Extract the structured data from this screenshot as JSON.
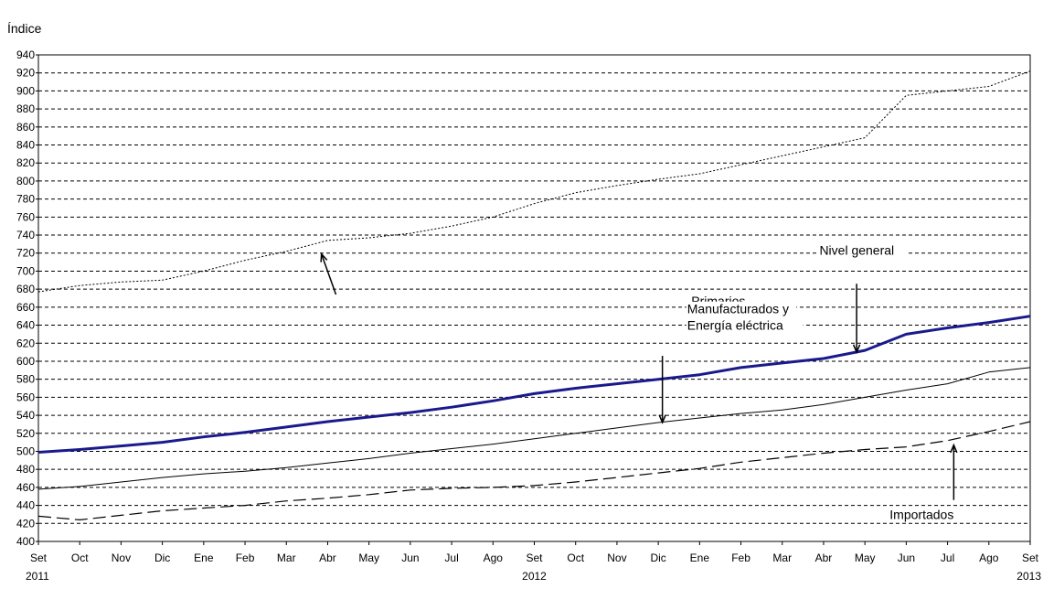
{
  "chart_data": {
    "type": "line",
    "title": "",
    "xlabel": "",
    "ylabel": "Índice",
    "ylim": [
      400,
      940
    ],
    "ytick_step": 20,
    "grid": true,
    "legend": "none",
    "categories": [
      "Set",
      "Oct",
      "Nov",
      "Dic",
      "Ene",
      "Feb",
      "Mar",
      "Abr",
      "May",
      "Jun",
      "Jul",
      "Ago",
      "Set",
      "Oct",
      "Nov",
      "Dic",
      "Ene",
      "Feb",
      "Mar",
      "Abr",
      "May",
      "Jun",
      "Jul",
      "Ago",
      "Set"
    ],
    "year_labels": [
      {
        "index": 0,
        "label": "2011"
      },
      {
        "index": 12,
        "label": "2012"
      },
      {
        "index": 24,
        "label": "2013"
      }
    ],
    "series": [
      {
        "name": "Primarios",
        "color": "#000000",
        "style": "dotted",
        "values": [
          677,
          684,
          688,
          690,
          700,
          712,
          722,
          734,
          737,
          742,
          750,
          760,
          775,
          787,
          795,
          802,
          808,
          818,
          828,
          838,
          848,
          895,
          900,
          905,
          922
        ]
      },
      {
        "name": "Nivel general",
        "color": "#1a1a8c",
        "style": "thick",
        "values": [
          499,
          502,
          506,
          510,
          516,
          521,
          527,
          533,
          538,
          543,
          549,
          556,
          564,
          570,
          575,
          580,
          585,
          593,
          598,
          603,
          612,
          630,
          637,
          643,
          650
        ]
      },
      {
        "name": "Manufacturados y Energía eléctrica",
        "color": "#000000",
        "style": "thin",
        "values": [
          458,
          461,
          466,
          471,
          475,
          478,
          482,
          487,
          492,
          498,
          503,
          508,
          514,
          520,
          526,
          532,
          537,
          542,
          546,
          552,
          560,
          568,
          575,
          588,
          593
        ]
      },
      {
        "name": "Importados",
        "color": "#000000",
        "style": "dashed",
        "values": [
          428,
          424,
          429,
          434,
          437,
          440,
          445,
          448,
          452,
          457,
          459,
          460,
          462,
          466,
          471,
          476,
          481,
          488,
          493,
          498,
          502,
          505,
          512,
          522,
          533
        ]
      }
    ],
    "annotations": [
      {
        "lines": [
          "Primarios"
        ],
        "text_x": 15.8,
        "text_y": 662,
        "arrow_from": [
          7.2,
          674
        ],
        "arrow_to": [
          6.85,
          719
        ]
      },
      {
        "lines": [
          "Nivel general"
        ],
        "text_x": 18.9,
        "text_y": 718,
        "arrow_from": [
          19.8,
          686
        ],
        "arrow_to": [
          19.8,
          610
        ]
      },
      {
        "lines": [
          "Manufacturados y",
          "Energía eléctrica"
        ],
        "text_x": 15.7,
        "text_y": 653,
        "arrow_from": [
          15.1,
          606
        ],
        "arrow_to": [
          15.1,
          532
        ]
      },
      {
        "lines": [
          "Importados"
        ],
        "text_x": 20.6,
        "text_y": 425,
        "arrow_from": [
          22.15,
          446
        ],
        "arrow_to": [
          22.15,
          507
        ]
      }
    ]
  }
}
